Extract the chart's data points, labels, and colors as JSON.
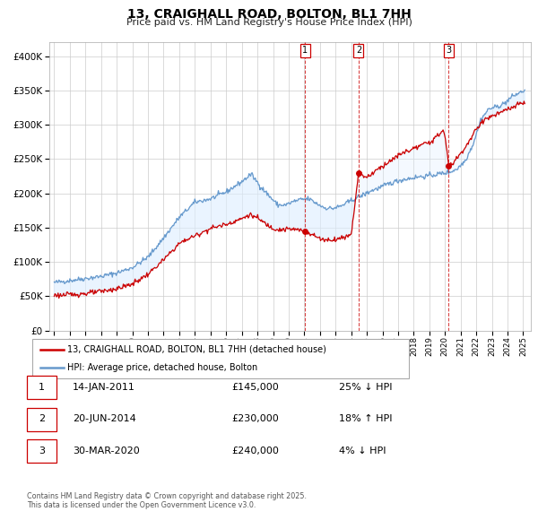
{
  "title": "13, CRAIGHALL ROAD, BOLTON, BL1 7HH",
  "subtitle": "Price paid vs. HM Land Registry's House Price Index (HPI)",
  "legend_line1": "13, CRAIGHALL ROAD, BOLTON, BL1 7HH (detached house)",
  "legend_line2": "HPI: Average price, detached house, Bolton",
  "footer_line1": "Contains HM Land Registry data © Crown copyright and database right 2025.",
  "footer_line2": "This data is licensed under the Open Government Licence v3.0.",
  "sale_color": "#cc0000",
  "hpi_color": "#6699cc",
  "hpi_fill_color": "#ddeeff",
  "bg_color": "#ffffff",
  "ylim": [
    0,
    420000
  ],
  "xlim_start": 1994.7,
  "xlim_end": 2025.5,
  "yticks": [
    0,
    50000,
    100000,
    150000,
    200000,
    250000,
    300000,
    350000,
    400000
  ],
  "ytick_labels": [
    "£0",
    "£50K",
    "£100K",
    "£150K",
    "£200K",
    "£250K",
    "£300K",
    "£350K",
    "£400K"
  ],
  "sale_dates": [
    2011.04,
    2014.47,
    2020.24
  ],
  "sale_prices": [
    145000,
    230000,
    240000
  ],
  "sale_labels": [
    "1",
    "2",
    "3"
  ],
  "table_rows": [
    {
      "num": "1",
      "date": "14-JAN-2011",
      "price": "£145,000",
      "pct": "25% ↓ HPI"
    },
    {
      "num": "2",
      "date": "20-JUN-2014",
      "price": "£230,000",
      "pct": "18% ↑ HPI"
    },
    {
      "num": "3",
      "date": "30-MAR-2020",
      "price": "£240,000",
      "pct": "4% ↓ HPI"
    }
  ],
  "hpi_points": [
    [
      1995.0,
      70000
    ],
    [
      1996.0,
      73000
    ],
    [
      1997.0,
      76000
    ],
    [
      1998.0,
      79000
    ],
    [
      1999.0,
      84000
    ],
    [
      2000.0,
      92000
    ],
    [
      2001.0,
      107000
    ],
    [
      2002.0,
      135000
    ],
    [
      2003.0,
      165000
    ],
    [
      2004.0,
      187000
    ],
    [
      2005.0,
      192000
    ],
    [
      2006.0,
      202000
    ],
    [
      2007.0,
      217000
    ],
    [
      2007.6,
      228000
    ],
    [
      2008.2,
      210000
    ],
    [
      2008.8,
      195000
    ],
    [
      2009.3,
      183000
    ],
    [
      2009.8,
      183000
    ],
    [
      2010.3,
      188000
    ],
    [
      2010.8,
      191000
    ],
    [
      2011.3,
      192000
    ],
    [
      2011.8,
      185000
    ],
    [
      2012.3,
      179000
    ],
    [
      2012.8,
      178000
    ],
    [
      2013.3,
      181000
    ],
    [
      2013.8,
      187000
    ],
    [
      2014.3,
      193000
    ],
    [
      2014.8,
      198000
    ],
    [
      2015.3,
      204000
    ],
    [
      2015.8,
      208000
    ],
    [
      2016.3,
      213000
    ],
    [
      2016.8,
      217000
    ],
    [
      2017.3,
      220000
    ],
    [
      2017.8,
      222000
    ],
    [
      2018.3,
      224000
    ],
    [
      2018.8,
      225000
    ],
    [
      2019.3,
      227000
    ],
    [
      2019.8,
      229000
    ],
    [
      2020.3,
      231000
    ],
    [
      2020.8,
      236000
    ],
    [
      2021.3,
      248000
    ],
    [
      2021.8,
      272000
    ],
    [
      2022.3,
      308000
    ],
    [
      2022.8,
      323000
    ],
    [
      2023.3,
      326000
    ],
    [
      2023.8,
      331000
    ],
    [
      2024.3,
      341000
    ],
    [
      2024.8,
      347000
    ],
    [
      2025.1,
      350000
    ]
  ],
  "sale_line_points": [
    [
      1995.0,
      52000
    ],
    [
      1995.5,
      51500
    ],
    [
      1996.0,
      52500
    ],
    [
      1997.0,
      54000
    ],
    [
      1998.0,
      57000
    ],
    [
      1999.0,
      61000
    ],
    [
      2000.0,
      68000
    ],
    [
      2001.0,
      82000
    ],
    [
      2002.0,
      103000
    ],
    [
      2003.0,
      127000
    ],
    [
      2003.5,
      133000
    ],
    [
      2004.0,
      138000
    ],
    [
      2005.0,
      149000
    ],
    [
      2006.0,
      155000
    ],
    [
      2007.0,
      163000
    ],
    [
      2007.5,
      169000
    ],
    [
      2008.0,
      164000
    ],
    [
      2008.5,
      156000
    ],
    [
      2009.0,
      149000
    ],
    [
      2009.5,
      147000
    ],
    [
      2010.0,
      148000
    ],
    [
      2010.5,
      147000
    ],
    [
      2011.04,
      145000
    ],
    [
      2011.5,
      140000
    ],
    [
      2012.0,
      134000
    ],
    [
      2012.5,
      132000
    ],
    [
      2013.0,
      133000
    ],
    [
      2013.5,
      136000
    ],
    [
      2014.0,
      140000
    ],
    [
      2014.47,
      230000
    ],
    [
      2014.8,
      226000
    ],
    [
      2015.0,
      223000
    ],
    [
      2015.5,
      232000
    ],
    [
      2016.0,
      240000
    ],
    [
      2016.5,
      247000
    ],
    [
      2017.0,
      255000
    ],
    [
      2017.5,
      261000
    ],
    [
      2018.0,
      265000
    ],
    [
      2018.5,
      270000
    ],
    [
      2019.0,
      275000
    ],
    [
      2019.4,
      280000
    ],
    [
      2019.7,
      288000
    ],
    [
      2019.85,
      293000
    ],
    [
      2020.0,
      283000
    ],
    [
      2020.24,
      240000
    ],
    [
      2020.5,
      244000
    ],
    [
      2021.0,
      258000
    ],
    [
      2021.5,
      274000
    ],
    [
      2022.0,
      293000
    ],
    [
      2022.5,
      308000
    ],
    [
      2023.0,
      312000
    ],
    [
      2023.5,
      317000
    ],
    [
      2024.0,
      322000
    ],
    [
      2024.5,
      327000
    ],
    [
      2025.1,
      333000
    ]
  ]
}
